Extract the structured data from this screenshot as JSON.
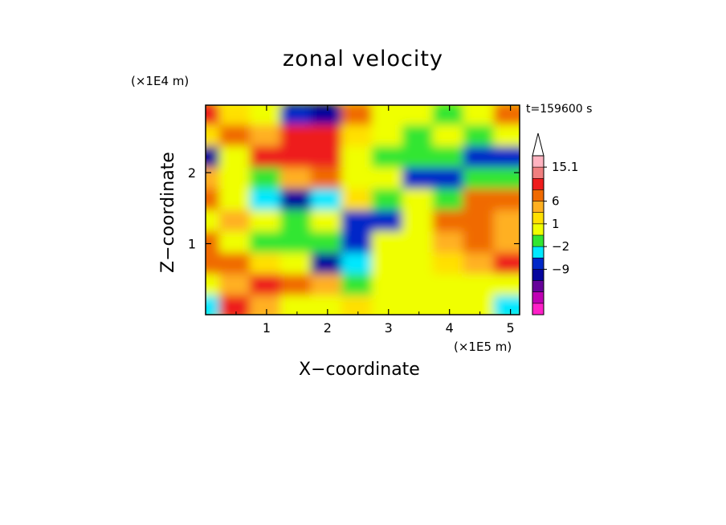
{
  "chart_data": {
    "type": "heatmap",
    "title": "zonal velocity",
    "xlabel": "X−coordinate",
    "ylabel": "Z−coordinate",
    "x_scale_note": "(×1E5 m)",
    "y_scale_note": "(×1E4 m)",
    "time_label": "t=159600 s",
    "xlim": [
      0,
      5.15
    ],
    "ylim": [
      0,
      2.95
    ],
    "x_ticks": [
      "1",
      "2",
      "3",
      "4",
      "5"
    ],
    "y_ticks": [
      "1",
      "2"
    ],
    "colorbar": {
      "labels": [
        "15.1",
        "6",
        "1",
        "−2",
        "−9"
      ],
      "colors": [
        "#ffb3c0",
        "#f07f7f",
        "#ee1c1c",
        "#f06a00",
        "#ffb020",
        "#ffe000",
        "#f0ff00",
        "#32e632",
        "#00e8ff",
        "#0028c8",
        "#06069e",
        "#66029a",
        "#c000b4",
        "#ff20c8"
      ]
    },
    "field": {
      "note": "approximate zonal velocity values on the plotted X–Z grid",
      "x": [
        0.0,
        0.5,
        1.0,
        1.5,
        2.0,
        2.5,
        3.0,
        3.5,
        4.0,
        4.5,
        5.0
      ],
      "z": [
        2.8,
        2.5,
        2.2,
        1.9,
        1.6,
        1.3,
        1.0,
        0.7,
        0.4,
        0.1
      ],
      "values": [
        [
          6,
          2,
          1,
          -3,
          -9,
          4,
          1,
          1,
          0,
          1,
          4
        ],
        [
          2,
          5,
          3,
          6,
          6,
          2,
          1,
          0,
          1,
          0,
          1
        ],
        [
          -9,
          1,
          6,
          6,
          6,
          1,
          0,
          0,
          0,
          -5,
          -5
        ],
        [
          3,
          1,
          0,
          3,
          4,
          1,
          1,
          -3,
          -3,
          0,
          0
        ],
        [
          5,
          1,
          -2,
          -9,
          -2,
          2,
          0,
          1,
          0,
          5,
          4
        ],
        [
          1,
          3,
          1,
          0,
          1,
          -3,
          -3,
          1,
          4,
          5,
          3
        ],
        [
          4,
          1,
          0,
          0,
          0,
          -3,
          1,
          1,
          3,
          4,
          3
        ],
        [
          4,
          4,
          2,
          1,
          -9,
          -2,
          1,
          1,
          2,
          3,
          6
        ],
        [
          1,
          3,
          6,
          4,
          3,
          0,
          1,
          1,
          1,
          1,
          1
        ],
        [
          -2,
          6,
          3,
          1,
          1,
          2,
          1,
          1,
          1,
          1,
          -2
        ]
      ]
    }
  }
}
